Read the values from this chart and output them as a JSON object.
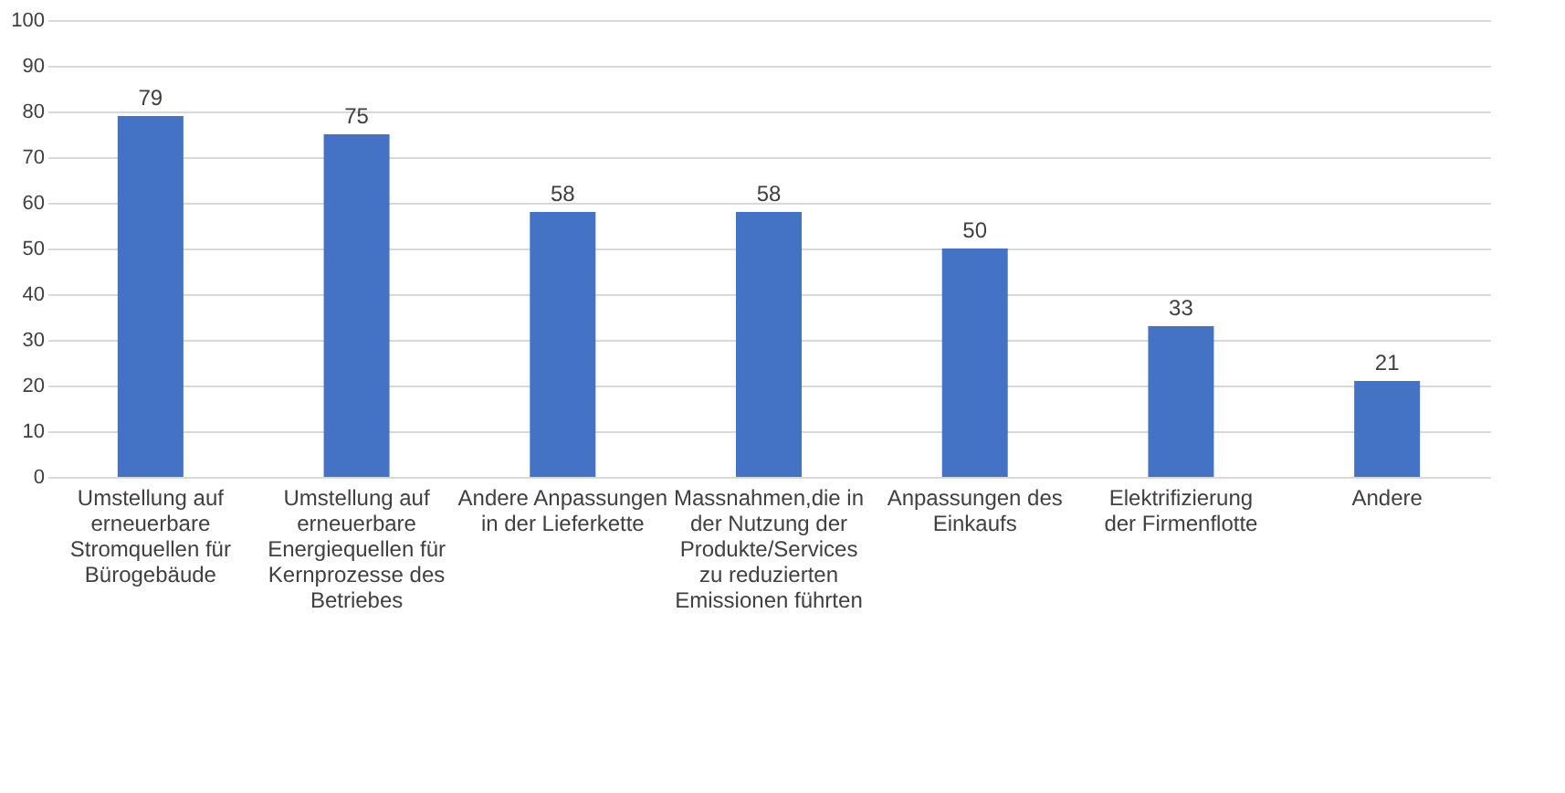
{
  "chart_data": {
    "type": "bar",
    "categories": [
      "Umstellung auf erneuerbare Stromquellen für Bürogebäude",
      "Umstellung auf erneuerbare Energiequellen für Kernprozesse des Betriebes",
      "Andere Anpassungen in der Lieferkette",
      "Massnahmen,die in der Nutzung der Produkte/Services zu reduzierten Emissionen führten",
      "Anpassungen des Einkaufs",
      "Elektrifizierung der Firmenflotte",
      "Andere"
    ],
    "values": [
      79,
      75,
      58,
      58,
      50,
      33,
      21
    ],
    "color": "#4472c4",
    "ylim": [
      0,
      100
    ],
    "yticks": [
      0,
      10,
      20,
      30,
      40,
      50,
      60,
      70,
      80,
      90,
      100
    ],
    "grid": "y",
    "data_labels": true
  }
}
